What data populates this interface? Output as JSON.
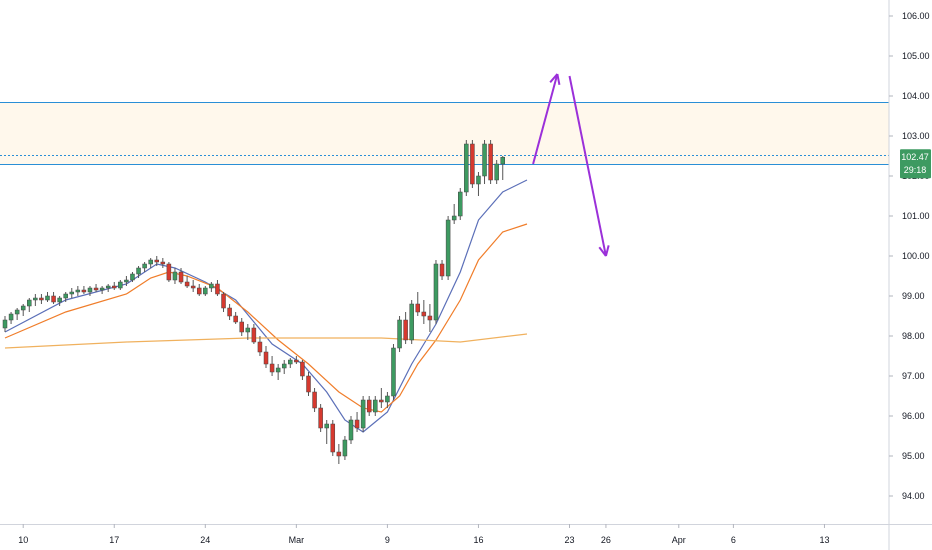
{
  "chart_data": {
    "type": "candlestick",
    "y_axis": {
      "range": [
        93.3,
        106.4
      ],
      "ticks": [
        "94.00",
        "95.00",
        "96.00",
        "97.00",
        "98.00",
        "99.00",
        "100.00",
        "101.00",
        "102.00",
        "103.00",
        "104.00",
        "105.00",
        "106.00"
      ]
    },
    "x_axis": {
      "ticks": [
        {
          "label": "10",
          "bar": 3
        },
        {
          "label": "17",
          "bar": 18
        },
        {
          "label": "24",
          "bar": 33
        },
        {
          "label": "Mar",
          "bar": 48
        },
        {
          "label": "9",
          "bar": 63
        },
        {
          "label": "16",
          "bar": 78
        },
        {
          "label": "23",
          "bar": 93
        },
        {
          "label": "26",
          "bar": 99
        },
        {
          "label": "Apr",
          "bar": 111
        },
        {
          "label": "6",
          "bar": 120
        },
        {
          "label": "13",
          "bar": 135
        }
      ]
    },
    "candles": [
      [
        98.2,
        98.5,
        98.1,
        98.4
      ],
      [
        98.4,
        98.6,
        98.3,
        98.55
      ],
      [
        98.55,
        98.7,
        98.4,
        98.65
      ],
      [
        98.65,
        98.8,
        98.5,
        98.75
      ],
      [
        98.75,
        98.95,
        98.6,
        98.9
      ],
      [
        98.9,
        99.05,
        98.75,
        98.95
      ],
      [
        98.95,
        99.05,
        98.8,
        98.9
      ],
      [
        98.9,
        99.1,
        98.85,
        99.0
      ],
      [
        99.0,
        99.1,
        98.8,
        98.85
      ],
      [
        98.85,
        99.0,
        98.75,
        98.95
      ],
      [
        98.95,
        99.1,
        98.85,
        99.05
      ],
      [
        99.05,
        99.2,
        98.95,
        99.1
      ],
      [
        99.1,
        99.25,
        99.0,
        99.15
      ],
      [
        99.15,
        99.25,
        99.05,
        99.1
      ],
      [
        99.1,
        99.25,
        99.0,
        99.2
      ],
      [
        99.2,
        99.3,
        99.1,
        99.15
      ],
      [
        99.15,
        99.25,
        99.05,
        99.2
      ],
      [
        99.2,
        99.3,
        99.1,
        99.25
      ],
      [
        99.25,
        99.35,
        99.15,
        99.2
      ],
      [
        99.2,
        99.4,
        99.15,
        99.35
      ],
      [
        99.35,
        99.5,
        99.25,
        99.4
      ],
      [
        99.4,
        99.6,
        99.35,
        99.55
      ],
      [
        99.55,
        99.75,
        99.45,
        99.7
      ],
      [
        99.7,
        99.85,
        99.6,
        99.8
      ],
      [
        99.8,
        99.95,
        99.7,
        99.9
      ],
      [
        99.9,
        100.0,
        99.75,
        99.85
      ],
      [
        99.85,
        99.95,
        99.7,
        99.8
      ],
      [
        99.8,
        99.85,
        99.35,
        99.4
      ],
      [
        99.4,
        99.7,
        99.3,
        99.6
      ],
      [
        99.6,
        99.7,
        99.3,
        99.35
      ],
      [
        99.35,
        99.5,
        99.2,
        99.25
      ],
      [
        99.25,
        99.4,
        99.1,
        99.2
      ],
      [
        99.2,
        99.3,
        99.0,
        99.05
      ],
      [
        99.05,
        99.25,
        99.0,
        99.2
      ],
      [
        99.2,
        99.35,
        99.1,
        99.3
      ],
      [
        99.3,
        99.4,
        99.0,
        99.05
      ],
      [
        99.05,
        99.1,
        98.6,
        98.7
      ],
      [
        98.7,
        98.8,
        98.4,
        98.5
      ],
      [
        98.5,
        98.6,
        98.3,
        98.35
      ],
      [
        98.35,
        98.45,
        98.0,
        98.1
      ],
      [
        98.1,
        98.3,
        97.9,
        98.2
      ],
      [
        98.2,
        98.3,
        97.8,
        97.85
      ],
      [
        97.85,
        98.0,
        97.5,
        97.6
      ],
      [
        97.6,
        97.75,
        97.2,
        97.3
      ],
      [
        97.3,
        97.5,
        97.0,
        97.1
      ],
      [
        97.1,
        97.3,
        96.9,
        97.2
      ],
      [
        97.2,
        97.4,
        97.05,
        97.3
      ],
      [
        97.3,
        97.45,
        97.2,
        97.4
      ],
      [
        97.4,
        97.5,
        97.3,
        97.35
      ],
      [
        97.35,
        97.4,
        96.9,
        97.0
      ],
      [
        97.0,
        97.1,
        96.5,
        96.6
      ],
      [
        96.6,
        96.7,
        96.1,
        96.2
      ],
      [
        96.2,
        96.3,
        95.6,
        95.7
      ],
      [
        95.7,
        95.9,
        95.3,
        95.8
      ],
      [
        95.8,
        95.9,
        95.0,
        95.1
      ],
      [
        95.1,
        95.3,
        94.8,
        95.0
      ],
      [
        95.0,
        95.5,
        94.9,
        95.4
      ],
      [
        95.4,
        96.0,
        95.3,
        95.9
      ],
      [
        95.9,
        96.1,
        95.6,
        95.7
      ],
      [
        95.7,
        96.5,
        95.6,
        96.4
      ],
      [
        96.4,
        96.5,
        96.0,
        96.1
      ],
      [
        96.1,
        96.5,
        96.0,
        96.4
      ],
      [
        96.4,
        96.7,
        96.2,
        96.35
      ],
      [
        96.35,
        96.6,
        96.2,
        96.5
      ],
      [
        96.5,
        97.8,
        96.4,
        97.7
      ],
      [
        97.7,
        98.5,
        97.6,
        98.4
      ],
      [
        98.4,
        98.6,
        97.8,
        97.9
      ],
      [
        97.9,
        98.9,
        97.8,
        98.8
      ],
      [
        98.8,
        99.1,
        98.5,
        98.6
      ],
      [
        98.6,
        98.9,
        98.3,
        98.5
      ],
      [
        98.5,
        98.8,
        98.1,
        98.4
      ],
      [
        98.4,
        99.9,
        98.3,
        99.8
      ],
      [
        99.8,
        99.9,
        99.4,
        99.5
      ],
      [
        99.5,
        101.0,
        99.4,
        100.9
      ],
      [
        100.9,
        101.3,
        100.8,
        101.0
      ],
      [
        101.0,
        101.7,
        100.9,
        101.6
      ],
      [
        101.6,
        102.9,
        101.5,
        102.8
      ],
      [
        102.8,
        102.9,
        101.7,
        101.8
      ],
      [
        101.8,
        102.1,
        101.5,
        102.0
      ],
      [
        102.0,
        102.9,
        101.8,
        102.8
      ],
      [
        102.8,
        102.9,
        101.8,
        101.9
      ],
      [
        101.9,
        102.4,
        101.8,
        102.3
      ],
      [
        102.3,
        102.5,
        101.9,
        102.47
      ]
    ],
    "moving_averages": [
      {
        "color": "#5b6fb8",
        "points": [
          [
            0,
            98.1
          ],
          [
            10,
            98.9
          ],
          [
            20,
            99.3
          ],
          [
            25,
            99.8
          ],
          [
            28,
            99.7
          ],
          [
            33,
            99.35
          ],
          [
            38,
            98.9
          ],
          [
            44,
            97.8
          ],
          [
            49,
            97.3
          ],
          [
            53,
            96.6
          ],
          [
            56,
            95.9
          ],
          [
            59,
            95.6
          ],
          [
            63,
            96.1
          ],
          [
            67,
            97.3
          ],
          [
            71,
            98.3
          ],
          [
            75,
            99.6
          ],
          [
            78,
            100.9
          ],
          [
            82,
            101.6
          ],
          [
            86,
            101.9
          ]
        ]
      },
      {
        "color": "#f07d2a",
        "points": [
          [
            0,
            97.95
          ],
          [
            10,
            98.6
          ],
          [
            20,
            99.05
          ],
          [
            24,
            99.45
          ],
          [
            27,
            99.6
          ],
          [
            30,
            99.5
          ],
          [
            35,
            99.2
          ],
          [
            40,
            98.6
          ],
          [
            45,
            97.9
          ],
          [
            50,
            97.3
          ],
          [
            55,
            96.6
          ],
          [
            59,
            96.2
          ],
          [
            62,
            96.1
          ],
          [
            65,
            96.5
          ],
          [
            68,
            97.3
          ],
          [
            71,
            97.9
          ],
          [
            75,
            98.9
          ],
          [
            78,
            99.9
          ],
          [
            82,
            100.6
          ],
          [
            86,
            100.8
          ]
        ]
      },
      {
        "color": "#f0b15e",
        "points": [
          [
            0,
            97.7
          ],
          [
            20,
            97.85
          ],
          [
            40,
            97.95
          ],
          [
            62,
            97.95
          ],
          [
            75,
            97.85
          ],
          [
            86,
            98.05
          ]
        ]
      }
    ],
    "zone": {
      "top": 103.85,
      "bottom": 102.3
    },
    "levels": [
      {
        "value": 102.52,
        "style": "dotted"
      },
      {
        "value": 102.3,
        "style": "solid"
      },
      {
        "value": 103.85,
        "style": "solid"
      }
    ],
    "projection": [
      {
        "from": [
          87,
          102.3
        ],
        "to": [
          91,
          104.55
        ]
      },
      {
        "from": [
          93,
          104.5
        ],
        "to": [
          99,
          100.0
        ]
      }
    ],
    "price_badge": {
      "value": "102.47",
      "sub": "29:18"
    }
  },
  "colors": {
    "up": "#3d9a61",
    "down": "#d6392f",
    "zone": "#fff8ec",
    "level": "#2a8fd6",
    "arrow": "#9b30d9",
    "badge": "#3d9a61"
  }
}
